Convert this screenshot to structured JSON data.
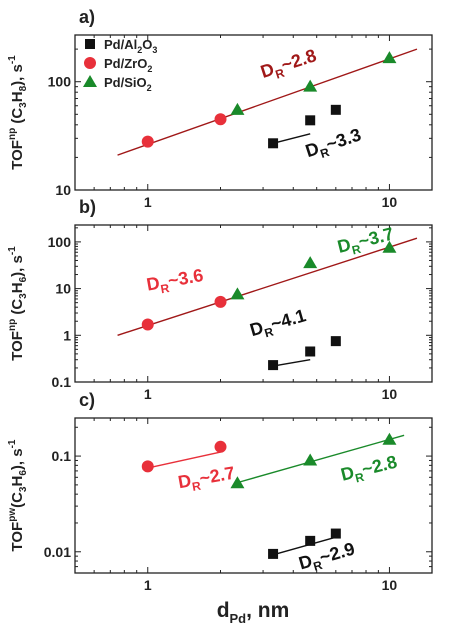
{
  "chart_data": [
    {
      "type": "scatter",
      "panel_label": "a)",
      "ylabel": {
        "main": "TOF",
        "sup": "np",
        "mid": " (C",
        "s1": "3",
        "h": "H",
        "s2": "8",
        "end": "), s",
        "unit_sup": "-1"
      },
      "xscale": "log",
      "yscale": "log",
      "xlim": [
        0.5,
        15
      ],
      "ylim": [
        10,
        270
      ],
      "yticks": [
        {
          "value": 10,
          "label": "10"
        },
        {
          "value": 100,
          "label": "100"
        }
      ],
      "xticks": [
        {
          "value": 1,
          "label": "1"
        },
        {
          "value": 10,
          "label": "10"
        }
      ],
      "series": [
        {
          "name": "Pd/Al2O3",
          "color": "#111111",
          "marker": "square",
          "x": [
            3.3,
            4.7,
            6.0
          ],
          "y": [
            27,
            44,
            55
          ]
        },
        {
          "name": "Pd/ZrO2",
          "color": "#e8303a",
          "marker": "circle",
          "x": [
            1.0,
            2.0
          ],
          "y": [
            28,
            45
          ]
        },
        {
          "name": "Pd/SiO2",
          "color": "#1a8a2a",
          "marker": "triangle",
          "x": [
            2.35,
            4.7,
            10.0
          ],
          "y": [
            55,
            90,
            165
          ]
        }
      ],
      "fits": [
        {
          "color": "#a01818",
          "x": [
            0.75,
            13
          ],
          "y": [
            21,
            200
          ]
        },
        {
          "color": "#111111",
          "x": [
            3.3,
            4.7
          ],
          "y": [
            27,
            33
          ]
        }
      ],
      "annotations": [
        {
          "text": "D",
          "sub": "R",
          "rest": "~2.8",
          "color": "#a01818",
          "x": 3.0,
          "y": 108,
          "rotate": -18
        },
        {
          "text": "D",
          "sub": "R",
          "rest": "~3.3",
          "color": "#111111",
          "x": 4.6,
          "y": 20,
          "rotate": -18
        }
      ]
    },
    {
      "type": "scatter",
      "panel_label": "b)",
      "ylabel": {
        "main": "TOF",
        "sup": "np",
        "mid": " (C",
        "s1": "3",
        "h": "H",
        "s2": "6",
        "end": "), s",
        "unit_sup": "-1"
      },
      "xscale": "log",
      "yscale": "log",
      "xlim": [
        0.5,
        15
      ],
      "ylim": [
        0.1,
        230
      ],
      "yticks": [
        {
          "value": 0.1,
          "label": "0.1"
        },
        {
          "value": 1,
          "label": "1"
        },
        {
          "value": 10,
          "label": "10"
        },
        {
          "value": 100,
          "label": "100"
        }
      ],
      "xticks": [
        {
          "value": 1,
          "label": "1"
        },
        {
          "value": 10,
          "label": "10"
        }
      ],
      "series": [
        {
          "name": "Pd/Al2O3",
          "color": "#111111",
          "marker": "square",
          "x": [
            3.3,
            4.7,
            6.0
          ],
          "y": [
            0.23,
            0.45,
            0.75
          ]
        },
        {
          "name": "Pd/ZrO2",
          "color": "#e8303a",
          "marker": "circle",
          "x": [
            1.0,
            2.0
          ],
          "y": [
            1.7,
            5.2
          ]
        },
        {
          "name": "Pd/SiO2",
          "color": "#1a8a2a",
          "marker": "triangle",
          "x": [
            2.35,
            4.7,
            10.0
          ],
          "y": [
            7.5,
            35,
            75
          ]
        }
      ],
      "fits": [
        {
          "color": "#a01818",
          "x": [
            0.75,
            13
          ],
          "y": [
            1.0,
            120
          ]
        },
        {
          "color": "#111111",
          "x": [
            3.3,
            4.7
          ],
          "y": [
            0.22,
            0.3
          ]
        }
      ],
      "annotations": [
        {
          "text": "D",
          "sub": "R",
          "rest": "~3.6",
          "color": "#e8303a",
          "x": 1.0,
          "y": 9.0,
          "rotate": -10
        },
        {
          "text": "D",
          "sub": "R",
          "rest": "~3.7",
          "color": "#1a8a2a",
          "x": 6.2,
          "y": 58,
          "rotate": -14
        },
        {
          "text": "D",
          "sub": "R",
          "rest": "~4.1",
          "color": "#111111",
          "x": 2.7,
          "y": 0.95,
          "rotate": -16
        }
      ]
    },
    {
      "type": "scatter",
      "panel_label": "c)",
      "ylabel": {
        "main": "TOF",
        "sup": "pw",
        "mid": "(C",
        "s1": "3",
        "h": "H",
        "s2": "6",
        "end": "), s",
        "unit_sup": "-1"
      },
      "xscale": "log",
      "yscale": "log",
      "xlim": [
        0.5,
        15
      ],
      "ylim": [
        0.006,
        0.25
      ],
      "yticks": [
        {
          "value": 0.01,
          "label": "0.01"
        },
        {
          "value": 0.1,
          "label": "0.1"
        }
      ],
      "xticks": [
        {
          "value": 1,
          "label": "1"
        },
        {
          "value": 10,
          "label": "10"
        }
      ],
      "series": [
        {
          "name": "Pd/Al2O3",
          "color": "#111111",
          "marker": "square",
          "x": [
            3.3,
            4.7,
            6.0
          ],
          "y": [
            0.0095,
            0.013,
            0.0155
          ]
        },
        {
          "name": "Pd/ZrO2",
          "color": "#e8303a",
          "marker": "circle",
          "x": [
            1.0,
            2.0
          ],
          "y": [
            0.078,
            0.125
          ]
        },
        {
          "name": "Pd/SiO2",
          "color": "#1a8a2a",
          "marker": "triangle",
          "x": [
            2.35,
            4.7,
            10.0
          ],
          "y": [
            0.052,
            0.09,
            0.148
          ]
        }
      ],
      "fits": [
        {
          "color": "#e8303a",
          "x": [
            0.95,
            2.0
          ],
          "y": [
            0.073,
            0.11
          ]
        },
        {
          "color": "#1a8a2a",
          "x": [
            2.3,
            11.5
          ],
          "y": [
            0.052,
            0.165
          ]
        },
        {
          "color": "#111111",
          "x": [
            3.3,
            6.0
          ],
          "y": [
            0.0093,
            0.0142
          ]
        }
      ],
      "annotations": [
        {
          "text": "D",
          "sub": "R",
          "rest": "~2.7",
          "color": "#e8303a",
          "x": 1.35,
          "y": 0.046,
          "rotate": -10
        },
        {
          "text": "D",
          "sub": "R",
          "rest": "~2.8",
          "color": "#1a8a2a",
          "x": 6.4,
          "y": 0.055,
          "rotate": -14
        },
        {
          "text": "D",
          "sub": "R",
          "rest": "~2.9",
          "color": "#111111",
          "x": 4.3,
          "y": 0.0065,
          "rotate": -16
        }
      ]
    }
  ],
  "legend": {
    "location": "top-left of panel a",
    "entries": [
      {
        "name_main": "Pd/Al",
        "sub1": "2",
        "mid": "O",
        "sub2": "3",
        "color": "#111111",
        "marker": "square"
      },
      {
        "name_main": "Pd/ZrO",
        "sub1": "2",
        "mid": "",
        "sub2": "",
        "color": "#e8303a",
        "marker": "circle"
      },
      {
        "name_main": "Pd/SiO",
        "sub1": "2",
        "mid": "",
        "sub2": "",
        "color": "#1a8a2a",
        "marker": "triangle"
      }
    ]
  },
  "xlabel": {
    "main": "d",
    "sub": "Pd",
    "rest": ", nm"
  }
}
